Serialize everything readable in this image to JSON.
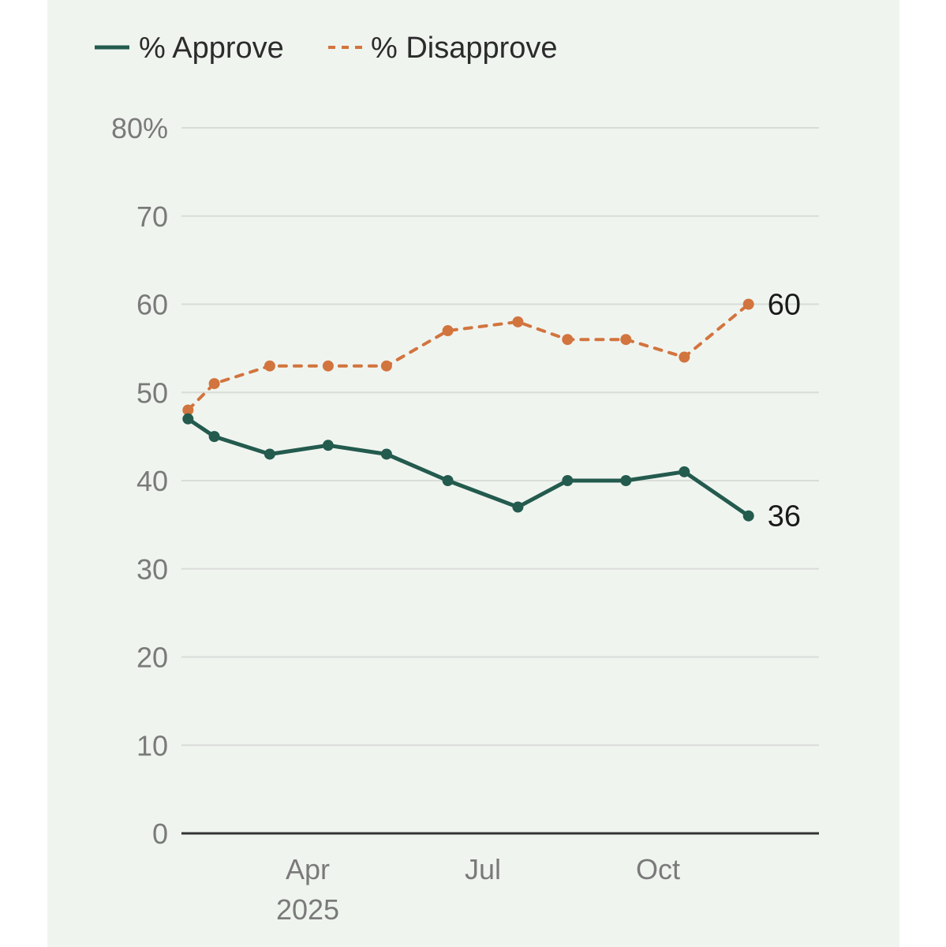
{
  "chart_data": {
    "type": "line",
    "title": "",
    "xlabel": "",
    "ylabel": "",
    "ylim": [
      0,
      80
    ],
    "y_ticks": [
      0,
      10,
      20,
      30,
      40,
      50,
      60,
      70,
      80
    ],
    "y_tick_labels": [
      "0",
      "10",
      "20",
      "30",
      "40",
      "50",
      "60",
      "70",
      "80%"
    ],
    "x_range": [
      0,
      11
    ],
    "x_ticks": [
      {
        "x": 2.5,
        "label": "Apr",
        "sublabel": "2025"
      },
      {
        "x": 5.5,
        "label": "Jul",
        "sublabel": ""
      },
      {
        "x": 8.5,
        "label": "Oct",
        "sublabel": ""
      }
    ],
    "grid": true,
    "legend_position": "top-left",
    "series": [
      {
        "name": "% Approve",
        "color": "#235b4e",
        "dash": "solid",
        "x": [
          0.45,
          0.9,
          1.85,
          2.85,
          3.85,
          4.9,
          6.1,
          6.95,
          7.95,
          8.95,
          10.05
        ],
        "values": [
          47,
          45,
          43,
          44,
          43,
          40,
          37,
          40,
          40,
          41,
          36
        ],
        "end_label": "36"
      },
      {
        "name": "% Disapprove",
        "color": "#d2743e",
        "dash": "dashed",
        "x": [
          0.45,
          0.9,
          1.85,
          2.85,
          3.85,
          4.9,
          6.1,
          6.95,
          7.95,
          8.95,
          10.05
        ],
        "values": [
          48,
          51,
          53,
          53,
          53,
          57,
          58,
          56,
          56,
          54,
          60
        ],
        "end_label": "60"
      }
    ]
  },
  "colors": {
    "panel_background": "#f0f4ef",
    "gridline": "#d9dcd8",
    "axis": "#333333",
    "tick_text": "#7a7a7a"
  }
}
